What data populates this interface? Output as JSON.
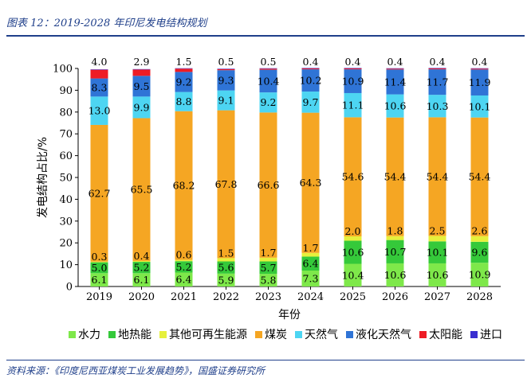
{
  "header": {
    "title": "图表 12：2019-2028 年印尼发电结构规划"
  },
  "footer": {
    "source": "资料来源：《印度尼西亚煤炭工业发展趋势》，国盛证券研究所"
  },
  "chart_data": {
    "type": "bar",
    "stacked": true,
    "categories": [
      "2019",
      "2020",
      "2021",
      "2022",
      "2023",
      "2024",
      "2025",
      "2026",
      "2027",
      "2028"
    ],
    "xlabel": "年份",
    "ylabel": "发电结构占比/%",
    "ylim": [
      0,
      100
    ],
    "yticks": [
      "0",
      "10",
      "20",
      "30",
      "40",
      "50",
      "60",
      "70",
      "80",
      "90",
      "100"
    ],
    "grid": false,
    "legend_position": "bottom",
    "series": [
      {
        "name": "水力",
        "color": "#7ee84a",
        "values": [
          6.1,
          6.1,
          6.4,
          5.9,
          5.8,
          7.3,
          10.4,
          10.6,
          10.6,
          10.9
        ],
        "labels": [
          "6.1",
          "6.1",
          "6.4",
          "5.9",
          "5.8",
          "7.3",
          "10.4",
          "10.6",
          "10.6",
          "10.9"
        ]
      },
      {
        "name": "地热能",
        "color": "#35c93a",
        "values": [
          5.0,
          5.2,
          5.2,
          5.6,
          5.7,
          6.4,
          10.6,
          10.7,
          10.1,
          9.6
        ],
        "labels": [
          "5.0",
          "5.2",
          "5.2",
          "5.6",
          "5.7",
          "6.4",
          "10.6",
          "10.7",
          "10.1",
          "9.6"
        ]
      },
      {
        "name": "其他可再生能源",
        "color": "#e6f03c",
        "values": [
          0.3,
          0.4,
          0.6,
          1.5,
          1.7,
          1.7,
          2.0,
          1.8,
          2.5,
          2.6
        ],
        "labels": [
          "0.3",
          "0.4",
          "0.6",
          "1.5",
          "1.7",
          "1.7",
          "2.0",
          "1.8",
          "2.5",
          "2.6"
        ]
      },
      {
        "name": "煤炭",
        "color": "#f5a623",
        "values": [
          62.7,
          65.5,
          68.2,
          67.8,
          66.6,
          64.3,
          54.6,
          54.4,
          54.4,
          54.4
        ],
        "labels": [
          "62.7",
          "65.5",
          "68.2",
          "67.8",
          "66.6",
          "64.3",
          "54.6",
          "54.4",
          "54.4",
          "54.4"
        ]
      },
      {
        "name": "天然气",
        "color": "#4dd5f2",
        "values": [
          13.0,
          9.9,
          8.8,
          9.1,
          9.2,
          9.7,
          11.1,
          10.6,
          10.3,
          10.1
        ],
        "labels": [
          "13.0",
          "9.9",
          "8.8",
          "9.1",
          "9.2",
          "9.7",
          "11.1",
          "10.6",
          "10.3",
          "10.1"
        ]
      },
      {
        "name": "液化天然气",
        "color": "#2f74d6",
        "values": [
          8.3,
          9.5,
          9.2,
          9.3,
          10.4,
          10.2,
          10.9,
          11.4,
          11.7,
          11.9
        ],
        "labels": [
          "8.3",
          "9.5",
          "9.2",
          "9.3",
          "10.4",
          "10.2",
          "10.9",
          "11.4",
          "11.7",
          "11.9"
        ]
      },
      {
        "name": "太阳能",
        "color": "#ee1c25",
        "values": [
          4.0,
          2.9,
          1.5,
          0.5,
          0.5,
          0.4,
          0.4,
          0.4,
          0.4,
          0.4
        ],
        "labels": [
          "4.0",
          "2.9",
          "1.5",
          "0.5",
          "0.5",
          "0.4",
          "0.4",
          "0.4",
          "0.4",
          "0.4"
        ]
      },
      {
        "name": "进口",
        "color": "#3a2fd0",
        "values": [
          0.2,
          0.2,
          0.2,
          0.2,
          0.2,
          0.2,
          0.2,
          0.2,
          0.2,
          0.2
        ],
        "labels": []
      }
    ]
  }
}
